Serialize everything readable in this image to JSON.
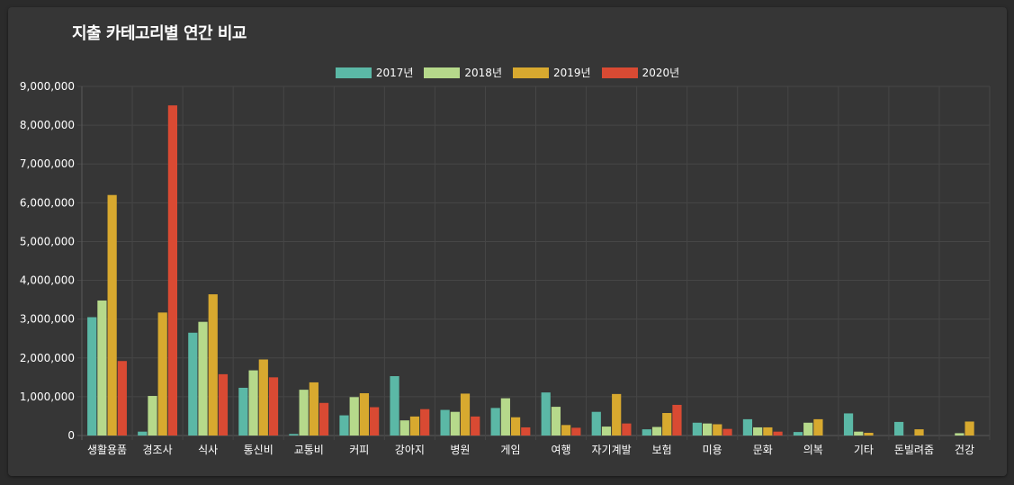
{
  "colors": {
    "background": "#2b2b2b",
    "card": "#363636",
    "grid": "#464646",
    "axis": "#5a5a5a",
    "text": "#ffffff"
  },
  "chart_data": {
    "type": "bar",
    "title": "지출 카테고리별 연간 비교",
    "xlabel": "",
    "ylabel": "",
    "ylim": [
      0,
      9000000
    ],
    "yticks": [
      0,
      1000000,
      2000000,
      3000000,
      4000000,
      5000000,
      6000000,
      7000000,
      8000000,
      9000000
    ],
    "grid": true,
    "legend_position": "top-center",
    "categories": [
      "생활용품",
      "경조사",
      "식사",
      "통신비",
      "교통비",
      "커피",
      "강아지",
      "병원",
      "게임",
      "여행",
      "자기계발",
      "보험",
      "미용",
      "문화",
      "의복",
      "기타",
      "돈빌려줌",
      "건강"
    ],
    "series": [
      {
        "name": "2017년",
        "color": "#5bb8a6",
        "values": [
          3050000,
          100000,
          2650000,
          1230000,
          40000,
          520000,
          1530000,
          660000,
          710000,
          1110000,
          610000,
          160000,
          330000,
          420000,
          90000,
          570000,
          350000,
          0
        ]
      },
      {
        "name": "2018년",
        "color": "#b6d98b",
        "values": [
          3480000,
          1020000,
          2930000,
          1680000,
          1180000,
          990000,
          390000,
          610000,
          960000,
          740000,
          230000,
          220000,
          310000,
          210000,
          330000,
          100000,
          0,
          60000
        ]
      },
      {
        "name": "2019년",
        "color": "#d8a92f",
        "values": [
          6200000,
          3170000,
          3640000,
          1960000,
          1370000,
          1090000,
          490000,
          1080000,
          470000,
          270000,
          1070000,
          580000,
          290000,
          210000,
          420000,
          70000,
          160000,
          360000
        ]
      },
      {
        "name": "2020년",
        "color": "#d94a33",
        "values": [
          1920000,
          8510000,
          1580000,
          1500000,
          840000,
          730000,
          680000,
          490000,
          210000,
          200000,
          310000,
          790000,
          170000,
          100000,
          0,
          0,
          0,
          0
        ]
      }
    ]
  }
}
